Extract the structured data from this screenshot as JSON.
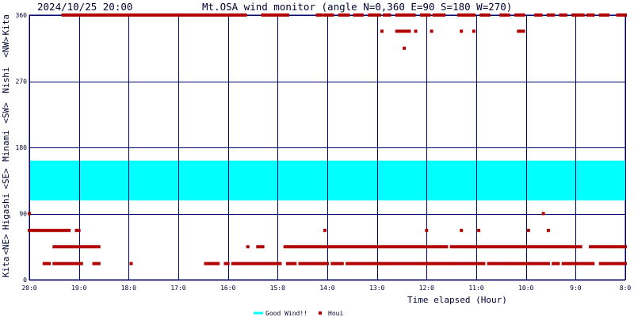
{
  "header": {
    "datetime": "2024/10/25 20:00",
    "title": "Mt.OSA wind monitor (angle N=0,360 E=90 S=180 W=270)"
  },
  "colors": {
    "grid": "#000066",
    "band": "#00ffff",
    "point": "#b00000",
    "text": "#000033"
  },
  "chart_data": {
    "type": "scatter",
    "title": "Mt.OSA wind monitor (angle N=0,360 E=90 S=180 W=270)",
    "xlabel": "Time elapsed (Hour)",
    "ylabel": "Kita <NE> Higashi <SE> Minami <SW> Nishi <NW> Kita",
    "ylabel_parts": [
      "Kita",
      "<NE>",
      "Higashi",
      "<SE>",
      "Minami",
      "<SW>",
      "Nishi",
      "<NW>",
      "Kita"
    ],
    "xlim": [
      20,
      8
    ],
    "ylim": [
      0,
      360
    ],
    "x_ticks": [
      "20:0",
      "19:0",
      "18:0",
      "17:0",
      "16:0",
      "15:0",
      "14:0",
      "13:0",
      "12:0",
      "11:0",
      "10:0",
      "9:0",
      "8:0"
    ],
    "x_tick_values": [
      20,
      19,
      18,
      17,
      16,
      15,
      14,
      13,
      12,
      11,
      10,
      9,
      8
    ],
    "y_ticks": [
      "0",
      "90",
      "180",
      "270",
      "360"
    ],
    "y_tick_values": [
      0,
      90,
      180,
      270,
      360
    ],
    "grid": true,
    "legend_position": "bottom",
    "good_wind_band": {
      "name": "Good Wind!!",
      "range": [
        108,
        162
      ]
    },
    "series": [
      {
        "name": "Houi",
        "style": "square",
        "segments": [
          [
            19.32,
            19.0,
            360
          ],
          [
            19.0,
            18.87,
            360
          ],
          [
            18.87,
            17.25,
            360
          ],
          [
            17.25,
            16.0,
            360
          ],
          [
            16.0,
            15.65,
            360
          ],
          [
            15.3,
            14.95,
            360
          ],
          [
            14.9,
            14.8,
            360
          ],
          [
            14.2,
            14.12,
            360
          ],
          [
            14.05,
            13.9,
            360
          ],
          [
            13.75,
            13.58,
            360
          ],
          [
            13.45,
            13.3,
            360
          ],
          [
            13.15,
            12.95,
            360
          ],
          [
            12.85,
            12.75,
            360
          ],
          [
            12.6,
            12.25,
            360
          ],
          [
            12.1,
            11.95,
            360
          ],
          [
            11.85,
            11.65,
            360
          ],
          [
            11.35,
            11.25,
            360
          ],
          [
            11.2,
            11.05,
            360
          ],
          [
            10.9,
            10.75,
            360
          ],
          [
            10.5,
            10.35,
            360
          ],
          [
            10.2,
            10.05,
            360
          ],
          [
            9.8,
            9.7,
            360
          ],
          [
            9.55,
            9.45,
            360
          ],
          [
            9.3,
            9.2,
            360
          ],
          [
            9.05,
            8.85,
            360
          ],
          [
            8.75,
            8.65,
            360
          ],
          [
            8.5,
            8.35,
            360
          ],
          [
            8.15,
            8.0,
            360
          ],
          [
            12.9,
            12.9,
            338
          ],
          [
            12.6,
            12.35,
            338
          ],
          [
            12.22,
            12.22,
            338
          ],
          [
            11.9,
            11.9,
            338
          ],
          [
            11.3,
            11.3,
            338
          ],
          [
            11.05,
            11.05,
            338
          ],
          [
            10.15,
            10.05,
            338
          ],
          [
            12.45,
            12.45,
            315
          ],
          [
            20.0,
            20.0,
            90
          ],
          [
            9.65,
            9.65,
            90
          ],
          [
            20.0,
            19.2,
            67
          ],
          [
            19.05,
            19.0,
            67
          ],
          [
            14.05,
            14.05,
            67
          ],
          [
            12.0,
            12.0,
            67
          ],
          [
            11.3,
            11.3,
            67
          ],
          [
            10.95,
            10.95,
            67
          ],
          [
            9.95,
            9.95,
            67
          ],
          [
            9.55,
            9.55,
            67
          ],
          [
            19.5,
            18.6,
            45
          ],
          [
            15.6,
            15.6,
            45
          ],
          [
            15.4,
            15.3,
            45
          ],
          [
            14.85,
            11.6,
            45
          ],
          [
            11.5,
            9.5,
            45
          ],
          [
            9.45,
            8.9,
            45
          ],
          [
            8.7,
            8.35,
            45
          ],
          [
            8.3,
            8.0,
            45
          ],
          [
            19.7,
            19.6,
            22
          ],
          [
            19.5,
            18.95,
            22
          ],
          [
            18.7,
            18.6,
            22
          ],
          [
            17.95,
            17.95,
            22
          ],
          [
            16.45,
            16.2,
            22
          ],
          [
            16.05,
            16.0,
            22
          ],
          [
            15.9,
            14.95,
            22
          ],
          [
            14.8,
            14.65,
            22
          ],
          [
            14.55,
            14.0,
            22
          ],
          [
            13.9,
            13.7,
            22
          ],
          [
            13.6,
            12.95,
            22
          ],
          [
            12.9,
            12.15,
            22
          ],
          [
            12.1,
            11.9,
            22
          ],
          [
            11.85,
            11.45,
            22
          ],
          [
            11.4,
            10.85,
            22
          ],
          [
            10.75,
            10.35,
            22
          ],
          [
            10.3,
            9.55,
            22
          ],
          [
            9.45,
            9.35,
            22
          ],
          [
            9.25,
            8.65,
            22
          ],
          [
            8.5,
            8.0,
            22
          ]
        ]
      }
    ]
  },
  "legend": {
    "good_label": "Good Wind!!",
    "point_label": "Houi"
  }
}
